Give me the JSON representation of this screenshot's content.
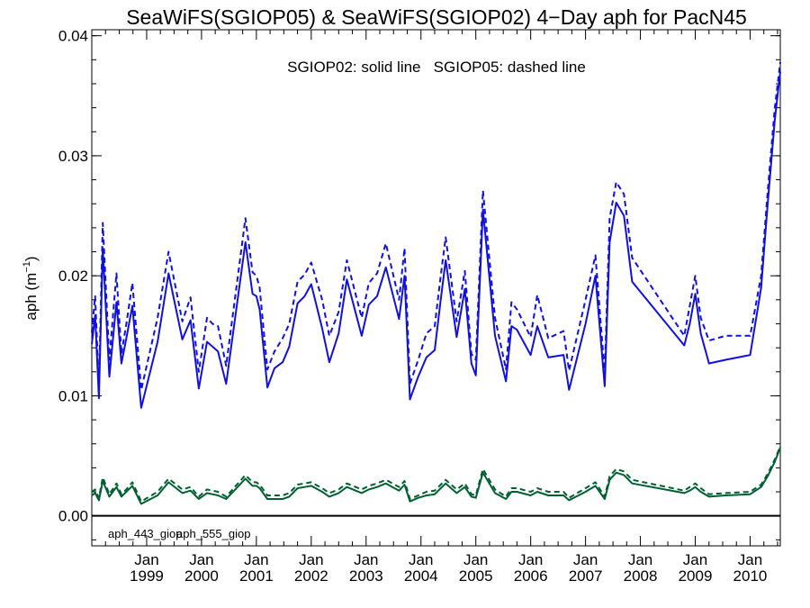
{
  "chart_data": {
    "type": "line",
    "title": "SeaWiFS(SGIOP05) & SeaWiFS(SGIOP02) 4−Day aph for PacN45",
    "annotation": "SGIOP02: solid line   SGIOP05: dashed line",
    "ylabel_main": "aph (m",
    "ylabel_sup": "−1",
    "ylabel_close": ")",
    "xlim": [
      1998.0,
      2010.55
    ],
    "ylim": [
      -0.0025,
      0.0405
    ],
    "yticks": [
      0.0,
      0.01,
      0.02,
      0.03,
      0.04
    ],
    "ytick_labels": [
      "0.00",
      "0.01",
      "0.02",
      "0.03",
      "0.04"
    ],
    "xticks": [
      {
        "month": "Jan",
        "year": "1999",
        "x": 1999.0
      },
      {
        "month": "Jan",
        "year": "2000",
        "x": 2000.0
      },
      {
        "month": "Jan",
        "year": "2001",
        "x": 2001.0
      },
      {
        "month": "Jan",
        "year": "2002",
        "x": 2002.0
      },
      {
        "month": "Jan",
        "year": "2003",
        "x": 2003.0
      },
      {
        "month": "Jan",
        "year": "2004",
        "x": 2004.0
      },
      {
        "month": "Jan",
        "year": "2005",
        "x": 2005.0
      },
      {
        "month": "Jan",
        "year": "2006",
        "x": 2006.0
      },
      {
        "month": "Jan",
        "year": "2007",
        "x": 2007.0
      },
      {
        "month": "Jan",
        "year": "2008",
        "x": 2008.0
      },
      {
        "month": "Jan",
        "year": "2009",
        "x": 2009.0
      },
      {
        "month": "Jan",
        "year": "2010",
        "x": 2010.0
      }
    ],
    "zero_line": 0.0,
    "legend": [
      {
        "label": "aph_443_giop",
        "color": "#1010e0"
      },
      {
        "label": "aph_555_giop",
        "color": "#006030"
      }
    ],
    "x": [
      1998.0,
      1998.06,
      1998.13,
      1998.2,
      1998.32,
      1998.45,
      1998.54,
      1998.63,
      1998.74,
      1998.9,
      1999.2,
      1999.4,
      1999.65,
      1999.8,
      1999.95,
      2000.1,
      2000.2,
      2000.3,
      2000.45,
      2000.8,
      2000.93,
      2001.0,
      2001.06,
      2001.2,
      2001.33,
      2001.48,
      2001.6,
      2001.75,
      2001.88,
      2002.0,
      2002.2,
      2002.33,
      2002.5,
      2002.65,
      2002.92,
      2003.05,
      2003.2,
      2003.36,
      2003.6,
      2003.7,
      2003.8,
      2003.95,
      2004.1,
      2004.25,
      2004.36,
      2004.45,
      2004.65,
      2004.8,
      2004.92,
      2005.0,
      2005.13,
      2005.35,
      2005.55,
      2005.65,
      2005.75,
      2006.0,
      2006.12,
      2006.32,
      2006.6,
      2006.7,
      2007.0,
      2007.18,
      2007.35,
      2007.44,
      2007.56,
      2007.7,
      2007.85,
      2008.8,
      2008.9,
      2009.0,
      2009.1,
      2009.25,
      2009.55,
      2010.0,
      2010.2,
      2010.32,
      2010.45,
      2010.55
    ],
    "series": [
      {
        "name": "aph_443_giop",
        "line": "solid",
        "color": "#1010e0",
        "values": [
          0.0143,
          0.0167,
          0.0098,
          0.0223,
          0.0116,
          0.0178,
          0.0127,
          0.0148,
          0.0175,
          0.009,
          0.0145,
          0.0202,
          0.0147,
          0.0163,
          0.0106,
          0.0145,
          0.0141,
          0.0137,
          0.011,
          0.0228,
          0.0185,
          0.0183,
          0.0172,
          0.0107,
          0.0123,
          0.0128,
          0.0141,
          0.0177,
          0.0183,
          0.0193,
          0.0156,
          0.0128,
          0.0152,
          0.0197,
          0.015,
          0.0176,
          0.0183,
          0.0207,
          0.0164,
          0.02,
          0.0097,
          0.0116,
          0.0132,
          0.0138,
          0.018,
          0.0213,
          0.0149,
          0.0189,
          0.0127,
          0.0117,
          0.0255,
          0.015,
          0.0112,
          0.0158,
          0.0155,
          0.0134,
          0.0158,
          0.0132,
          0.0134,
          0.0105,
          0.016,
          0.02,
          0.0108,
          0.0228,
          0.0261,
          0.025,
          0.0195,
          0.0142,
          0.016,
          0.0185,
          0.0152,
          0.0127,
          0.013,
          0.0134,
          0.019,
          0.026,
          0.033,
          0.037
        ]
      },
      {
        "name": "aph_443_giop",
        "line": "dashed",
        "color": "#1010e0",
        "values": [
          0.0153,
          0.0183,
          0.0108,
          0.0244,
          0.013,
          0.0202,
          0.0135,
          0.016,
          0.0194,
          0.0105,
          0.0165,
          0.022,
          0.0162,
          0.0182,
          0.012,
          0.0165,
          0.016,
          0.0158,
          0.0125,
          0.0248,
          0.0203,
          0.02,
          0.019,
          0.0122,
          0.0137,
          0.0148,
          0.016,
          0.0195,
          0.0201,
          0.0211,
          0.018,
          0.015,
          0.017,
          0.0213,
          0.0165,
          0.0194,
          0.0202,
          0.0227,
          0.018,
          0.0223,
          0.011,
          0.013,
          0.0152,
          0.0158,
          0.02,
          0.0232,
          0.0162,
          0.0204,
          0.0135,
          0.013,
          0.0271,
          0.0165,
          0.0122,
          0.0178,
          0.0172,
          0.0149,
          0.0184,
          0.0148,
          0.0154,
          0.0121,
          0.018,
          0.0217,
          0.0118,
          0.0248,
          0.0278,
          0.0268,
          0.0215,
          0.015,
          0.0175,
          0.02,
          0.0165,
          0.0146,
          0.015,
          0.015,
          0.02,
          0.027,
          0.034,
          0.0378
        ]
      },
      {
        "name": "aph_555_giop",
        "line": "solid",
        "color": "#006030",
        "values": [
          0.0017,
          0.0019,
          0.0013,
          0.0029,
          0.0016,
          0.0024,
          0.0016,
          0.002,
          0.0025,
          0.001,
          0.0017,
          0.0028,
          0.0019,
          0.0021,
          0.0014,
          0.0019,
          0.0018,
          0.0017,
          0.0014,
          0.0031,
          0.0025,
          0.0025,
          0.0023,
          0.0014,
          0.0014,
          0.0014,
          0.0016,
          0.0023,
          0.0024,
          0.0025,
          0.002,
          0.0016,
          0.0019,
          0.0024,
          0.0019,
          0.0022,
          0.0024,
          0.0027,
          0.0021,
          0.0026,
          0.0012,
          0.0015,
          0.0017,
          0.0018,
          0.0023,
          0.0027,
          0.0019,
          0.0024,
          0.0016,
          0.0015,
          0.0036,
          0.0019,
          0.0014,
          0.002,
          0.002,
          0.0017,
          0.002,
          0.0017,
          0.0017,
          0.0013,
          0.002,
          0.0025,
          0.0014,
          0.003,
          0.0036,
          0.0034,
          0.0027,
          0.0019,
          0.0021,
          0.0024,
          0.002,
          0.0016,
          0.0017,
          0.0018,
          0.0024,
          0.0033,
          0.0045,
          0.0057
        ]
      },
      {
        "name": "aph_555_giop",
        "line": "dashed",
        "color": "#006030",
        "values": [
          0.002,
          0.0022,
          0.0015,
          0.0032,
          0.0018,
          0.0027,
          0.0018,
          0.0022,
          0.0028,
          0.0012,
          0.002,
          0.0031,
          0.0022,
          0.0024,
          0.0016,
          0.0022,
          0.0021,
          0.002,
          0.0016,
          0.0034,
          0.0028,
          0.0028,
          0.0026,
          0.0017,
          0.0017,
          0.0017,
          0.0019,
          0.0026,
          0.0027,
          0.0028,
          0.0023,
          0.0019,
          0.0022,
          0.0027,
          0.0022,
          0.0025,
          0.0027,
          0.003,
          0.0024,
          0.0029,
          0.0014,
          0.0017,
          0.002,
          0.0021,
          0.0026,
          0.003,
          0.0022,
          0.0027,
          0.0018,
          0.0017,
          0.0039,
          0.0022,
          0.0016,
          0.0023,
          0.0023,
          0.002,
          0.0023,
          0.002,
          0.002,
          0.0015,
          0.0023,
          0.0028,
          0.0016,
          0.0033,
          0.0039,
          0.0037,
          0.003,
          0.0021,
          0.0024,
          0.0027,
          0.0023,
          0.0018,
          0.0019,
          0.002,
          0.0026,
          0.0035,
          0.0047,
          0.0058
        ]
      }
    ]
  }
}
